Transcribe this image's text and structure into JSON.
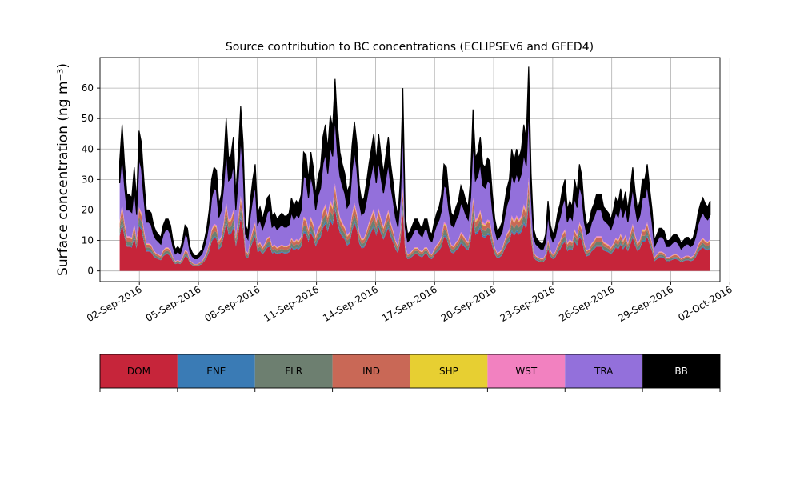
{
  "chart_data": {
    "type": "area",
    "stacked": true,
    "title": "Source contribution to BC concentrations (ECLIPSEv6 and GFED4)",
    "ylabel": "Surface concentration (ng m⁻³)",
    "xlabel": "",
    "grid": true,
    "x_start": "2016-09-01",
    "x_end": "2016-10-01",
    "x_range": [
      "2016-08-31T00:00",
      "2016-10-01T12:00"
    ],
    "ylim": [
      -3.5,
      70
    ],
    "x_ticks": [
      "02-Sep-2016",
      "05-Sep-2016",
      "08-Sep-2016",
      "11-Sep-2016",
      "14-Sep-2016",
      "17-Sep-2016",
      "20-Sep-2016",
      "23-Sep-2016",
      "26-Sep-2016",
      "29-Sep-2016",
      "02-Oct-2016"
    ],
    "y_ticks": [
      0,
      10,
      20,
      30,
      40,
      50,
      60
    ],
    "total": [
      36,
      48,
      35,
      25,
      25,
      24,
      34,
      23,
      46,
      42,
      30,
      20,
      20,
      19,
      15,
      13,
      12,
      11,
      15,
      17,
      17,
      15,
      10,
      7,
      8,
      7,
      10,
      15,
      14,
      8,
      6,
      5,
      5,
      6,
      7,
      10,
      14,
      20,
      30,
      34,
      33,
      22,
      25,
      35,
      50,
      37,
      38,
      44,
      25,
      38,
      54,
      42,
      15,
      13,
      23,
      30,
      35,
      19,
      21,
      17,
      20,
      24,
      25,
      18,
      19,
      17,
      18,
      19,
      18,
      18,
      19,
      24,
      21,
      23,
      22,
      25,
      39,
      38,
      30,
      39,
      34,
      25,
      31,
      34,
      44,
      48,
      40,
      51,
      47,
      63,
      48,
      39,
      35,
      32,
      26,
      28,
      41,
      49,
      42,
      28,
      23,
      24,
      29,
      35,
      40,
      45,
      36,
      45,
      38,
      32,
      38,
      44,
      35,
      29,
      22,
      18,
      30,
      60,
      18,
      12,
      13,
      15,
      17,
      17,
      15,
      14,
      17,
      17,
      13,
      12,
      16,
      19,
      21,
      25,
      35,
      34,
      25,
      19,
      18,
      21,
      23,
      28,
      26,
      23,
      21,
      30,
      53,
      37,
      39,
      44,
      35,
      34,
      37,
      36,
      25,
      17,
      13,
      14,
      16,
      22,
      27,
      30,
      40,
      36,
      40,
      37,
      40,
      48,
      43,
      67,
      32,
      14,
      11,
      10,
      9,
      9,
      12,
      23,
      15,
      12,
      14,
      19,
      22,
      27,
      30,
      20,
      23,
      21,
      30,
      26,
      35,
      31,
      20,
      15,
      16,
      20,
      22,
      25,
      25,
      25,
      21,
      20,
      19,
      17,
      20,
      24,
      22,
      27,
      22,
      26,
      20,
      27,
      34,
      26,
      20,
      23,
      30,
      30,
      35,
      27,
      20,
      10,
      12,
      14,
      14,
      13,
      10,
      10,
      11,
      12,
      12,
      11,
      9,
      10,
      11,
      11,
      10,
      11,
      14,
      19,
      22,
      24,
      22,
      21,
      23
    ],
    "series": [
      {
        "name": "DOM",
        "color": "#c6253a",
        "share": 0.4
      },
      {
        "name": "ENE",
        "color": "#3a7bb5",
        "share": 0.02
      },
      {
        "name": "FLR",
        "color": "#6d7f70",
        "share": 0.06
      },
      {
        "name": "IND",
        "color": "#c96856",
        "share": 0.06
      },
      {
        "name": "SHP",
        "color": "#e7cf32",
        "share": 0.01
      },
      {
        "name": "WST",
        "color": "#f281c0",
        "share": 0.02
      },
      {
        "name": "TRA",
        "color": "#9370db",
        "share": 0.43
      },
      {
        "name": "BB",
        "color": "#000000",
        "share": 0.2
      }
    ]
  },
  "legend": {
    "position": "bottom",
    "items": [
      {
        "label": "DOM",
        "color": "#c6253a",
        "text_color": "#000000"
      },
      {
        "label": "ENE",
        "color": "#3a7bb5",
        "text_color": "#000000"
      },
      {
        "label": "FLR",
        "color": "#6d7f70",
        "text_color": "#000000"
      },
      {
        "label": "IND",
        "color": "#c96856",
        "text_color": "#000000"
      },
      {
        "label": "SHP",
        "color": "#e7cf32",
        "text_color": "#000000"
      },
      {
        "label": "WST",
        "color": "#f281c0",
        "text_color": "#000000"
      },
      {
        "label": "TRA",
        "color": "#9370db",
        "text_color": "#000000"
      },
      {
        "label": "BB",
        "color": "#000000",
        "text_color": "#ffffff"
      }
    ]
  }
}
